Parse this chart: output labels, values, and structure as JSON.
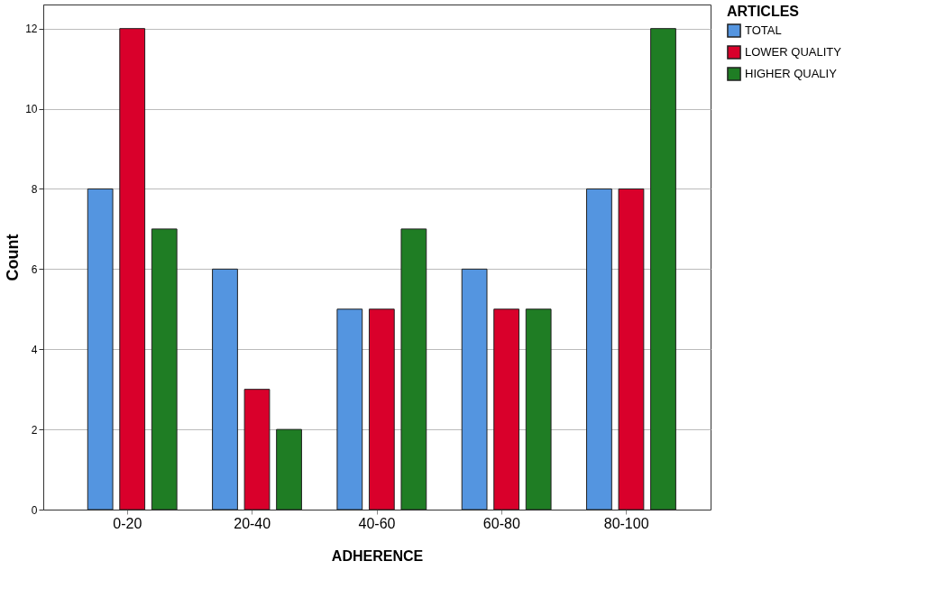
{
  "chart_data": {
    "type": "bar",
    "xlabel": "ADHERENCE",
    "ylabel": "Count",
    "legend_title": "ARTICLES",
    "categories": [
      "0-20",
      "20-40",
      "40-60",
      "60-80",
      "80-100"
    ],
    "series": [
      {
        "name": "TOTAL",
        "color": "#5495e0",
        "values": [
          8,
          6,
          5,
          6,
          8
        ]
      },
      {
        "name": "LOWER QUALITY",
        "color": "#d9002b",
        "values": [
          12,
          3,
          5,
          5,
          8
        ]
      },
      {
        "name": "HIGHER QUALIY",
        "color": "#1f7d24",
        "values": [
          7,
          2,
          7,
          5,
          12
        ]
      }
    ],
    "ylim": [
      0,
      12.6
    ],
    "yticks": [
      0,
      2,
      4,
      6,
      8,
      10,
      12
    ],
    "grid": "y",
    "legend": "top right"
  }
}
